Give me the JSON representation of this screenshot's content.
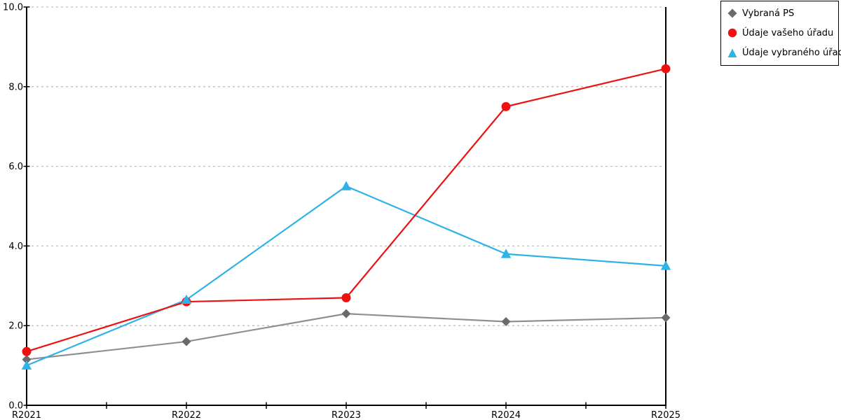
{
  "colors": {
    "background": "#ffffff",
    "axis": "#000000",
    "grid": "#bfbfbf",
    "legend_border": "#000000",
    "text": "#000000"
  },
  "chart_data": {
    "type": "line",
    "title": "",
    "xlabel": "",
    "ylabel": "",
    "categories": [
      "R2021",
      "R2022",
      "R2023",
      "R2024",
      "R2025"
    ],
    "series": [
      {
        "name": "Vybraná PS",
        "marker": "diamond",
        "line_color": "#8f8f8f",
        "marker_color": "#6a6a6a",
        "values": [
          1.15,
          1.6,
          2.3,
          2.1,
          2.2
        ]
      },
      {
        "name": "Údaje vašeho úřadu",
        "marker": "circle",
        "line_color": "#ee1111",
        "marker_color": "#ee1111",
        "values": [
          1.35,
          2.6,
          2.7,
          7.5,
          8.45
        ]
      },
      {
        "name": "Údaje vybraného úřadu",
        "marker": "triangle",
        "line_color": "#2eb2e8",
        "marker_color": "#2eb2e8",
        "values": [
          1.0,
          2.65,
          5.5,
          3.8,
          3.5
        ]
      }
    ],
    "ylim": [
      0,
      10
    ],
    "ytick_step": 2,
    "ytick_labels": [
      "0.0",
      "2.0",
      "4.0",
      "6.0",
      "8.0",
      "10.0"
    ],
    "grid": "horizontal-dashed",
    "legend_position": "outside-top-right"
  }
}
